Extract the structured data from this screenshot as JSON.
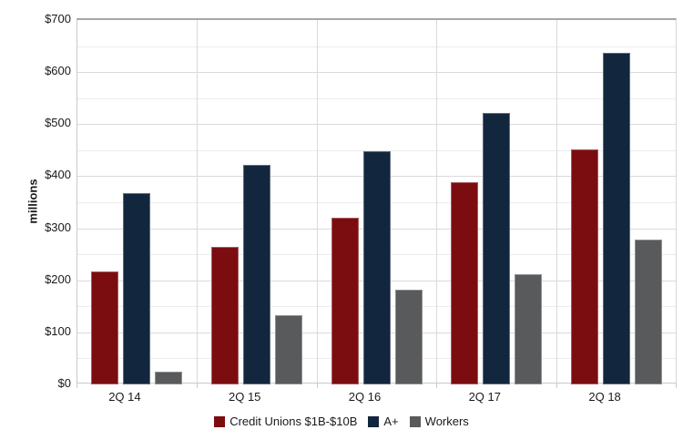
{
  "chart_data": {
    "type": "bar",
    "title": "",
    "categories": [
      "2Q 14",
      "2Q 15",
      "2Q 16",
      "2Q 17",
      "2Q 18"
    ],
    "series": [
      {
        "name": "Credit Unions $1B-$10B",
        "color": "#7B0D10",
        "values": [
          217,
          265,
          321,
          389,
          451
        ]
      },
      {
        "name": "A+",
        "color": "#12263E",
        "values": [
          368,
          421,
          448,
          521,
          637
        ]
      },
      {
        "name": "Workers",
        "color": "#595A5C",
        "values": [
          25,
          133,
          182,
          211,
          278
        ]
      }
    ],
    "xlabel": "",
    "ylabel": "millions",
    "ylim": [
      0,
      700
    ],
    "ytick_step": 100,
    "yminor_step": 50,
    "ytick_prefix": "$",
    "grid": true,
    "legend_position": "bottom"
  },
  "colors": {
    "major_gridline": "#DADADA",
    "minor_gridline": "#ECECEC",
    "top_border": "#A6A6A6",
    "axis_line": "#C9C9C9",
    "text": "#1A1A1A"
  }
}
